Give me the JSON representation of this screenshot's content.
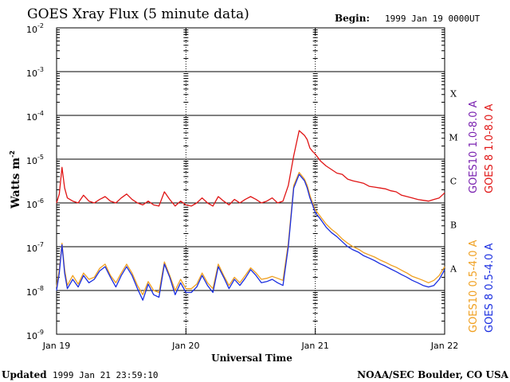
{
  "title": "GOES Xray Flux (5 minute data)",
  "begin_label": "Begin:",
  "begin_value": "1999 Jan 19 0000UT",
  "updated_label": "Updated",
  "updated_value": "1999 Jan 21 23:59:10",
  "credit": "NOAA/SEC Boulder, CO USA",
  "chart_data": {
    "type": "line",
    "title": "GOES Xray Flux (5 minute data)",
    "xlabel": "Universal Time",
    "ylabel": "Watts m",
    "ylabel_sup": "-2",
    "yscale": "log",
    "xlim": [
      0,
      72
    ],
    "ylim": [
      1e-09,
      0.01
    ],
    "y_tick_labels": [
      {
        "base": "10",
        "exp": "-2"
      },
      {
        "base": "10",
        "exp": "-3"
      },
      {
        "base": "10",
        "exp": "-4"
      },
      {
        "base": "10",
        "exp": "-5"
      },
      {
        "base": "10",
        "exp": "-6"
      },
      {
        "base": "10",
        "exp": "-7"
      },
      {
        "base": "10",
        "exp": "-8"
      },
      {
        "base": "10",
        "exp": "-9"
      }
    ],
    "x_tick_labels": [
      "Jan 19",
      "Jan 20",
      "Jan 21",
      "Jan 22"
    ],
    "flare_classes": [
      "X",
      "M",
      "C",
      "B",
      "A"
    ],
    "grid": "horizontal at decades",
    "legend_placement": "right, vertical",
    "legend": [
      {
        "label": "GOES10 1.0-8.0 A",
        "color": "#7a22b0"
      },
      {
        "label": "GOES 8 1.0-8.0 A",
        "color": "#e01515"
      },
      {
        "label": "GOES10 0.5-4.0 A",
        "color": "#f0a020"
      },
      {
        "label": "GOES 8 0.5-4.0 A",
        "color": "#1a2ee0"
      }
    ],
    "series": [
      {
        "name": "GOES 8 1.0-8.0 A",
        "color": "#e01515",
        "x": [
          0,
          0.5,
          1,
          1.5,
          2,
          3,
          4,
          5,
          6,
          7,
          8,
          9,
          10,
          11,
          12,
          13,
          14,
          15,
          16,
          17,
          18,
          19,
          20,
          21,
          22,
          23,
          24,
          25,
          26,
          27,
          28,
          29,
          30,
          31,
          32,
          33,
          34,
          35,
          36,
          37,
          38,
          39,
          40,
          41,
          42,
          43,
          44,
          45,
          46,
          46.5,
          47,
          47.5,
          48,
          49,
          50,
          51,
          52,
          53,
          54,
          55,
          56,
          57,
          58,
          59,
          60,
          61,
          62,
          63,
          64,
          65,
          66,
          67,
          68,
          69,
          70,
          71,
          72
        ],
        "y": [
          1e-06,
          1.6e-06,
          6.5e-06,
          2.2e-06,
          1.3e-06,
          1.1e-06,
          1e-06,
          1.5e-06,
          1.1e-06,
          1e-06,
          1.2e-06,
          1.4e-06,
          1.1e-06,
          1e-06,
          1.3e-06,
          1.6e-06,
          1.2e-06,
          1e-06,
          9e-07,
          1.1e-06,
          9e-07,
          8.5e-07,
          1.8e-06,
          1.2e-06,
          8.5e-07,
          1.1e-06,
          9e-07,
          8.5e-07,
          1e-06,
          1.3e-06,
          1e-06,
          8.5e-07,
          1.4e-06,
          1.1e-06,
          9e-07,
          1.2e-06,
          1e-06,
          1.2e-06,
          1.4e-06,
          1.2e-06,
          1e-06,
          1.1e-06,
          1.3e-06,
          1e-06,
          1.1e-06,
          2.5e-06,
          1.2e-05,
          4.5e-05,
          3.5e-05,
          2.8e-05,
          1.8e-05,
          1.5e-05,
          1.3e-05,
          9e-06,
          7e-06,
          5.8e-06,
          4.8e-06,
          4.5e-06,
          3.5e-06,
          3.2e-06,
          3e-06,
          2.8e-06,
          2.4e-06,
          2.3e-06,
          2.2e-06,
          2.1e-06,
          1.9e-06,
          1.8e-06,
          1.5e-06,
          1.4e-06,
          1.3e-06,
          1.2e-06,
          1.15e-06,
          1.1e-06,
          1.2e-06,
          1.3e-06,
          1.7e-06
        ]
      },
      {
        "name": "GOES10 0.5-4.0 A",
        "color": "#f0a020",
        "x": [
          0,
          0.5,
          1,
          1.5,
          2,
          3,
          4,
          5,
          6,
          7,
          8,
          9,
          10,
          11,
          12,
          13,
          14,
          15,
          16,
          17,
          18,
          19,
          20,
          21,
          22,
          23,
          24,
          25,
          26,
          27,
          28,
          29,
          30,
          31,
          32,
          33,
          34,
          35,
          36,
          37,
          38,
          39,
          40,
          41,
          42,
          43,
          44,
          45,
          46,
          46.5,
          47,
          47.5,
          48,
          49,
          50,
          51,
          52,
          53,
          54,
          55,
          56,
          57,
          58,
          59,
          60,
          61,
          62,
          63,
          64,
          65,
          66,
          67,
          68,
          69,
          70,
          71,
          72
        ],
        "y": [
          1.2e-08,
          3e-08,
          1.2e-07,
          3e-08,
          1.3e-08,
          2.2e-08,
          1.4e-08,
          2.5e-08,
          1.8e-08,
          2e-08,
          3.2e-08,
          4e-08,
          2.2e-08,
          1.5e-08,
          2.5e-08,
          4e-08,
          2.5e-08,
          1.3e-08,
          8e-09,
          1.6e-08,
          1e-08,
          9e-09,
          4.5e-08,
          2.2e-08,
          1e-08,
          1.8e-08,
          1.1e-08,
          1.1e-08,
          1.4e-08,
          2.5e-08,
          1.5e-08,
          1.1e-08,
          4e-08,
          2.2e-08,
          1.3e-08,
          2e-08,
          1.5e-08,
          2.2e-08,
          3.3e-08,
          2.5e-08,
          1.8e-08,
          1.9e-08,
          2.1e-08,
          1.9e-08,
          1.7e-08,
          1.2e-07,
          2.5e-06,
          5e-06,
          3.5e-06,
          2.5e-06,
          1.5e-06,
          1e-06,
          7e-07,
          4.8e-07,
          3.3e-07,
          2.5e-07,
          2e-07,
          1.5e-07,
          1.2e-07,
          1e-07,
          8.8e-08,
          7.3e-08,
          6.5e-08,
          5.8e-08,
          5e-08,
          4.4e-08,
          3.8e-08,
          3.4e-08,
          2.9e-08,
          2.5e-08,
          2.1e-08,
          1.9e-08,
          1.7e-08,
          1.5e-08,
          1.7e-08,
          2.2e-08,
          3.5e-08
        ]
      },
      {
        "name": "GOES 8 0.5-4.0 A",
        "color": "#1a2ee0",
        "x": [
          0,
          0.5,
          1,
          1.5,
          2,
          3,
          4,
          5,
          6,
          7,
          8,
          9,
          10,
          11,
          12,
          13,
          14,
          15,
          16,
          17,
          18,
          19,
          20,
          21,
          22,
          23,
          24,
          25,
          26,
          27,
          28,
          29,
          30,
          31,
          32,
          33,
          34,
          35,
          36,
          37,
          38,
          39,
          40,
          41,
          42,
          43,
          44,
          45,
          46,
          46.5,
          47,
          47.5,
          48,
          49,
          50,
          51,
          52,
          53,
          54,
          55,
          56,
          57,
          58,
          59,
          60,
          61,
          62,
          63,
          64,
          65,
          66,
          67,
          68,
          69,
          70,
          71,
          72
        ],
        "y": [
          1e-08,
          2.5e-08,
          1.1e-07,
          2.5e-08,
          1.1e-08,
          1.8e-08,
          1.2e-08,
          2.2e-08,
          1.5e-08,
          1.8e-08,
          2.8e-08,
          3.5e-08,
          2e-08,
          1.2e-08,
          2.2e-08,
          3.5e-08,
          2.2e-08,
          1.1e-08,
          6e-09,
          1.4e-08,
          8e-09,
          7e-09,
          4e-08,
          2e-08,
          8e-09,
          1.5e-08,
          9e-09,
          9e-09,
          1.2e-08,
          2.2e-08,
          1.3e-08,
          9e-09,
          3.5e-08,
          2e-08,
          1.1e-08,
          1.8e-08,
          1.3e-08,
          1.9e-08,
          3e-08,
          2.2e-08,
          1.5e-08,
          1.6e-08,
          1.8e-08,
          1.5e-08,
          1.3e-08,
          1e-07,
          2.2e-06,
          4.5e-06,
          3.2e-06,
          2.2e-06,
          1.3e-06,
          9e-07,
          6e-07,
          4.2e-07,
          2.8e-07,
          2.1e-07,
          1.7e-07,
          1.3e-07,
          1e-07,
          8.5e-08,
          7.5e-08,
          6.2e-08,
          5.5e-08,
          4.8e-08,
          4.1e-08,
          3.6e-08,
          3.1e-08,
          2.7e-08,
          2.3e-08,
          2e-08,
          1.7e-08,
          1.5e-08,
          1.3e-08,
          1.2e-08,
          1.3e-08,
          1.8e-08,
          3e-08
        ]
      }
    ]
  }
}
